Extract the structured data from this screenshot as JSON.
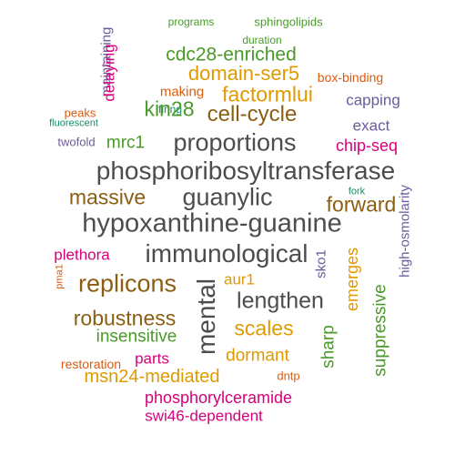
{
  "colors": {
    "green": "#4a9a2a",
    "gold": "#e09a00",
    "brown": "#8c5e12",
    "purple": "#6b5a9c",
    "magenta": "#d6007a",
    "orange": "#d95c10",
    "teal": "#1a8a6a",
    "gray": "#4d4d4d"
  },
  "words": [
    {
      "text": "programs",
      "color": "green"
    },
    {
      "text": "duration",
      "color": "green"
    },
    {
      "text": "sphingolipids",
      "color": "green"
    },
    {
      "text": "maintaining",
      "color": "purple"
    },
    {
      "text": "delaying",
      "color": "magenta"
    },
    {
      "text": "cdc28-enriched",
      "color": "green"
    },
    {
      "text": "box-binding",
      "color": "orange"
    },
    {
      "text": "making",
      "color": "orange"
    },
    {
      "text": "domain-ser5",
      "color": "gold"
    },
    {
      "text": "factormlui",
      "color": "gold"
    },
    {
      "text": "capping",
      "color": "purple"
    },
    {
      "text": "peaks",
      "color": "orange"
    },
    {
      "text": "firing",
      "color": "teal"
    },
    {
      "text": "kin28",
      "color": "green"
    },
    {
      "text": "cell-cycle",
      "color": "brown"
    },
    {
      "text": "fluorescent",
      "color": "teal"
    },
    {
      "text": "fuga",
      "color": "teal"
    },
    {
      "text": "exact",
      "color": "purple"
    },
    {
      "text": "twofold",
      "color": "purple"
    },
    {
      "text": "mrc1",
      "color": "green"
    },
    {
      "text": "proportions",
      "color": "gray"
    },
    {
      "text": "chip-seq",
      "color": "magenta"
    },
    {
      "text": "phosphoribosyltransferase",
      "color": "gray"
    },
    {
      "text": "massive",
      "color": "brown"
    },
    {
      "text": "guanylic",
      "color": "gray"
    },
    {
      "text": "fork",
      "color": "teal"
    },
    {
      "text": "forward",
      "color": "brown"
    },
    {
      "text": "high-osmolarity",
      "color": "purple"
    },
    {
      "text": "hypoxanthine-guanine",
      "color": "gray"
    },
    {
      "text": "plethora",
      "color": "magenta"
    },
    {
      "text": "immunological",
      "color": "gray"
    },
    {
      "text": "sko1",
      "color": "purple"
    },
    {
      "text": "pma1",
      "color": "orange"
    },
    {
      "text": "replicons",
      "color": "brown"
    },
    {
      "text": "aur1",
      "color": "gold"
    },
    {
      "text": "emerges",
      "color": "gold"
    },
    {
      "text": "mental",
      "color": "gray"
    },
    {
      "text": "lengthen",
      "color": "gray"
    },
    {
      "text": "robustness",
      "color": "brown"
    },
    {
      "text": "scales",
      "color": "gold"
    },
    {
      "text": "suppressive",
      "color": "green"
    },
    {
      "text": "insensitive",
      "color": "green"
    },
    {
      "text": "sharp",
      "color": "green"
    },
    {
      "text": "parts",
      "color": "magenta"
    },
    {
      "text": "dormant",
      "color": "gold"
    },
    {
      "text": "restoration",
      "color": "orange"
    },
    {
      "text": "dntp",
      "color": "orange"
    },
    {
      "text": "msn24-mediated",
      "color": "gold"
    },
    {
      "text": "phosphorylceramide",
      "color": "magenta"
    },
    {
      "text": "swi46-dependent",
      "color": "magenta"
    }
  ]
}
